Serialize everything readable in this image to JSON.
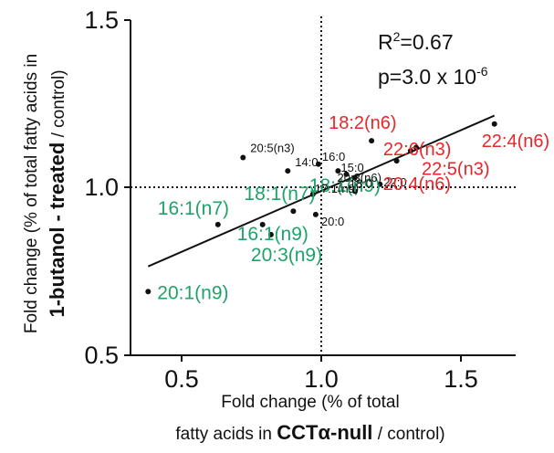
{
  "chart_data": {
    "type": "scatter",
    "x_ticks": [
      "0.5",
      "1.0",
      "1.5"
    ],
    "y_ticks": [
      "1.5",
      "1.0",
      "0.5"
    ],
    "xlim": [
      0.33,
      1.66
    ],
    "ylim": [
      0.5,
      1.5
    ],
    "reference_lines": {
      "x": 1.0,
      "y": 1.0
    },
    "xlabel": {
      "line1": "Fold change (% of total",
      "line2_pre": "fatty acids in ",
      "line2_bold": "CCTα-null",
      "line2_post": " / control)"
    },
    "ylabel": {
      "line1": "Fold change (% of total fatty acids in",
      "line2_bold": "1-butanol - treated",
      "line2_post": " / control)"
    },
    "annotations": {
      "r2_base": "R",
      "r2_sup": "2",
      "r2_value": "=0.67",
      "p_base": "p=3.0 x 10",
      "p_sup": "-6"
    },
    "regression": {
      "x": [
        0.38,
        1.62
      ],
      "y": [
        0.765,
        1.215
      ]
    },
    "points": [
      {
        "label": "20:1(n9)",
        "x": 0.38,
        "y": 0.69,
        "group": "green"
      },
      {
        "label": "16:1(n7)",
        "x": 0.63,
        "y": 0.89,
        "group": "green"
      },
      {
        "label": "18:1(n7)",
        "x": 0.9,
        "y": 0.93,
        "group": "green"
      },
      {
        "label": "16:1(n9)",
        "x": 0.79,
        "y": 0.89,
        "group": "green"
      },
      {
        "label": "18:1(n9)",
        "x": 0.97,
        "y": 0.98,
        "group": "green"
      },
      {
        "label": "20:3(n9)",
        "x": 0.82,
        "y": 0.86,
        "group": "green"
      },
      {
        "label": "20:0",
        "x": 0.98,
        "y": 0.92,
        "group": "black"
      },
      {
        "label": "20:5(n3)",
        "x": 0.72,
        "y": 1.09,
        "group": "black"
      },
      {
        "label": "14:0",
        "x": 0.88,
        "y": 1.05,
        "group": "black"
      },
      {
        "label": "16:0",
        "x": 0.99,
        "y": 1.07,
        "group": "black"
      },
      {
        "label": "15:0",
        "x": 1.06,
        "y": 1.05,
        "group": "black"
      },
      {
        "label": "20:3(n6)",
        "x": 1.09,
        "y": 1.04,
        "group": "black"
      },
      {
        "label": "18:0",
        "x": 1.12,
        "y": 1.03,
        "group": "black"
      },
      {
        "label": "17:1(n9)",
        "x": 1.12,
        "y": 0.99,
        "group": "black"
      },
      {
        "label": "22:0",
        "x": 1.21,
        "y": 1.01,
        "group": "black"
      },
      {
        "label": "18:2(n6)",
        "x": 1.18,
        "y": 1.14,
        "group": "red"
      },
      {
        "label": "22:6(n3)",
        "x": 1.32,
        "y": 1.11,
        "group": "red"
      },
      {
        "label": "22:4(n6)",
        "x": 1.62,
        "y": 1.19,
        "group": "red"
      },
      {
        "label": "22:5(n3)",
        "x": 1.34,
        "y": 1.12,
        "group": "red"
      },
      {
        "label": "20:4(n6)",
        "x": 1.27,
        "y": 1.08,
        "group": "red"
      }
    ]
  },
  "colors": {
    "green": "#1fa36a",
    "red": "#e8262a",
    "black": "#111111"
  }
}
